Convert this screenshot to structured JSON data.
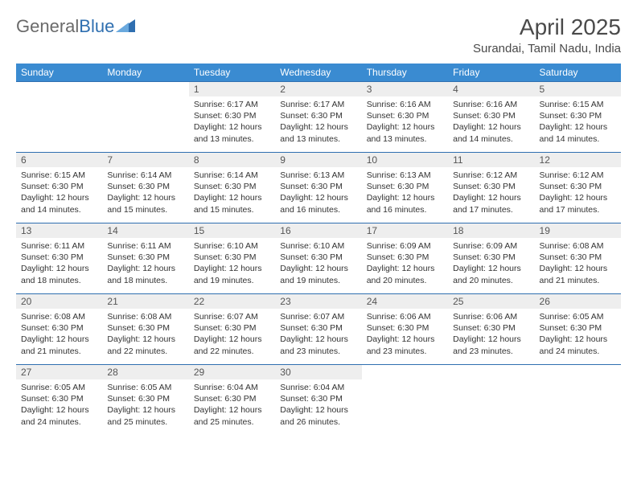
{
  "brand": {
    "part1": "General",
    "part2": "Blue"
  },
  "title": "April 2025",
  "location": "Surandai, Tamil Nadu, India",
  "colors": {
    "header_bg": "#3a8bd1",
    "header_text": "#ffffff",
    "row_border": "#2f6fb0",
    "daynum_bg": "#eeeeee",
    "text": "#333333",
    "brand_gray": "#6a6a6a",
    "brand_blue": "#2f6fb0"
  },
  "day_headers": [
    "Sunday",
    "Monday",
    "Tuesday",
    "Wednesday",
    "Thursday",
    "Friday",
    "Saturday"
  ],
  "weeks": [
    [
      {
        "n": "",
        "sr": "",
        "ss": "",
        "dl": ""
      },
      {
        "n": "",
        "sr": "",
        "ss": "",
        "dl": ""
      },
      {
        "n": "1",
        "sr": "Sunrise: 6:17 AM",
        "ss": "Sunset: 6:30 PM",
        "dl": "Daylight: 12 hours and 13 minutes."
      },
      {
        "n": "2",
        "sr": "Sunrise: 6:17 AM",
        "ss": "Sunset: 6:30 PM",
        "dl": "Daylight: 12 hours and 13 minutes."
      },
      {
        "n": "3",
        "sr": "Sunrise: 6:16 AM",
        "ss": "Sunset: 6:30 PM",
        "dl": "Daylight: 12 hours and 13 minutes."
      },
      {
        "n": "4",
        "sr": "Sunrise: 6:16 AM",
        "ss": "Sunset: 6:30 PM",
        "dl": "Daylight: 12 hours and 14 minutes."
      },
      {
        "n": "5",
        "sr": "Sunrise: 6:15 AM",
        "ss": "Sunset: 6:30 PM",
        "dl": "Daylight: 12 hours and 14 minutes."
      }
    ],
    [
      {
        "n": "6",
        "sr": "Sunrise: 6:15 AM",
        "ss": "Sunset: 6:30 PM",
        "dl": "Daylight: 12 hours and 14 minutes."
      },
      {
        "n": "7",
        "sr": "Sunrise: 6:14 AM",
        "ss": "Sunset: 6:30 PM",
        "dl": "Daylight: 12 hours and 15 minutes."
      },
      {
        "n": "8",
        "sr": "Sunrise: 6:14 AM",
        "ss": "Sunset: 6:30 PM",
        "dl": "Daylight: 12 hours and 15 minutes."
      },
      {
        "n": "9",
        "sr": "Sunrise: 6:13 AM",
        "ss": "Sunset: 6:30 PM",
        "dl": "Daylight: 12 hours and 16 minutes."
      },
      {
        "n": "10",
        "sr": "Sunrise: 6:13 AM",
        "ss": "Sunset: 6:30 PM",
        "dl": "Daylight: 12 hours and 16 minutes."
      },
      {
        "n": "11",
        "sr": "Sunrise: 6:12 AM",
        "ss": "Sunset: 6:30 PM",
        "dl": "Daylight: 12 hours and 17 minutes."
      },
      {
        "n": "12",
        "sr": "Sunrise: 6:12 AM",
        "ss": "Sunset: 6:30 PM",
        "dl": "Daylight: 12 hours and 17 minutes."
      }
    ],
    [
      {
        "n": "13",
        "sr": "Sunrise: 6:11 AM",
        "ss": "Sunset: 6:30 PM",
        "dl": "Daylight: 12 hours and 18 minutes."
      },
      {
        "n": "14",
        "sr": "Sunrise: 6:11 AM",
        "ss": "Sunset: 6:30 PM",
        "dl": "Daylight: 12 hours and 18 minutes."
      },
      {
        "n": "15",
        "sr": "Sunrise: 6:10 AM",
        "ss": "Sunset: 6:30 PM",
        "dl": "Daylight: 12 hours and 19 minutes."
      },
      {
        "n": "16",
        "sr": "Sunrise: 6:10 AM",
        "ss": "Sunset: 6:30 PM",
        "dl": "Daylight: 12 hours and 19 minutes."
      },
      {
        "n": "17",
        "sr": "Sunrise: 6:09 AM",
        "ss": "Sunset: 6:30 PM",
        "dl": "Daylight: 12 hours and 20 minutes."
      },
      {
        "n": "18",
        "sr": "Sunrise: 6:09 AM",
        "ss": "Sunset: 6:30 PM",
        "dl": "Daylight: 12 hours and 20 minutes."
      },
      {
        "n": "19",
        "sr": "Sunrise: 6:08 AM",
        "ss": "Sunset: 6:30 PM",
        "dl": "Daylight: 12 hours and 21 minutes."
      }
    ],
    [
      {
        "n": "20",
        "sr": "Sunrise: 6:08 AM",
        "ss": "Sunset: 6:30 PM",
        "dl": "Daylight: 12 hours and 21 minutes."
      },
      {
        "n": "21",
        "sr": "Sunrise: 6:08 AM",
        "ss": "Sunset: 6:30 PM",
        "dl": "Daylight: 12 hours and 22 minutes."
      },
      {
        "n": "22",
        "sr": "Sunrise: 6:07 AM",
        "ss": "Sunset: 6:30 PM",
        "dl": "Daylight: 12 hours and 22 minutes."
      },
      {
        "n": "23",
        "sr": "Sunrise: 6:07 AM",
        "ss": "Sunset: 6:30 PM",
        "dl": "Daylight: 12 hours and 23 minutes."
      },
      {
        "n": "24",
        "sr": "Sunrise: 6:06 AM",
        "ss": "Sunset: 6:30 PM",
        "dl": "Daylight: 12 hours and 23 minutes."
      },
      {
        "n": "25",
        "sr": "Sunrise: 6:06 AM",
        "ss": "Sunset: 6:30 PM",
        "dl": "Daylight: 12 hours and 23 minutes."
      },
      {
        "n": "26",
        "sr": "Sunrise: 6:05 AM",
        "ss": "Sunset: 6:30 PM",
        "dl": "Daylight: 12 hours and 24 minutes."
      }
    ],
    [
      {
        "n": "27",
        "sr": "Sunrise: 6:05 AM",
        "ss": "Sunset: 6:30 PM",
        "dl": "Daylight: 12 hours and 24 minutes."
      },
      {
        "n": "28",
        "sr": "Sunrise: 6:05 AM",
        "ss": "Sunset: 6:30 PM",
        "dl": "Daylight: 12 hours and 25 minutes."
      },
      {
        "n": "29",
        "sr": "Sunrise: 6:04 AM",
        "ss": "Sunset: 6:30 PM",
        "dl": "Daylight: 12 hours and 25 minutes."
      },
      {
        "n": "30",
        "sr": "Sunrise: 6:04 AM",
        "ss": "Sunset: 6:30 PM",
        "dl": "Daylight: 12 hours and 26 minutes."
      },
      {
        "n": "",
        "sr": "",
        "ss": "",
        "dl": ""
      },
      {
        "n": "",
        "sr": "",
        "ss": "",
        "dl": ""
      },
      {
        "n": "",
        "sr": "",
        "ss": "",
        "dl": ""
      }
    ]
  ]
}
